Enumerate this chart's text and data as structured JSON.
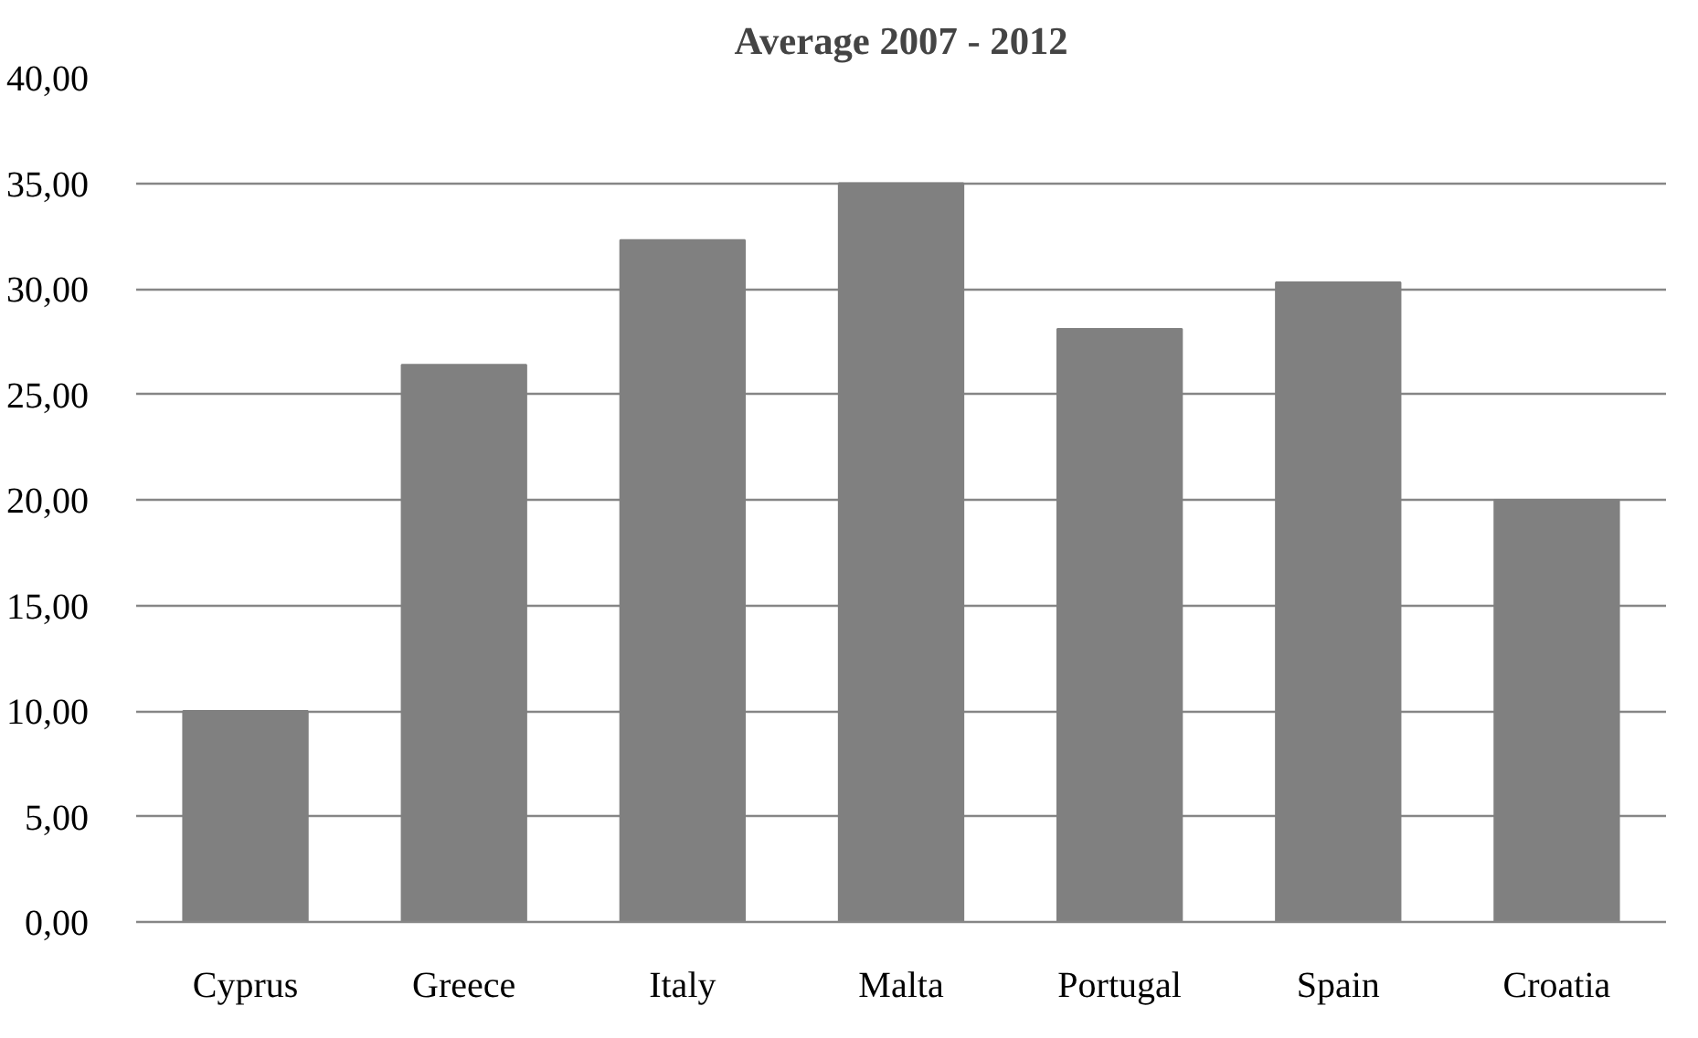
{
  "chart_data": {
    "type": "bar",
    "title": "Average 2007 - 2012",
    "categories": [
      "Cyprus",
      "Greece",
      "Italy",
      "Malta",
      "Portugal",
      "Spain",
      "Croatia"
    ],
    "values": [
      10.0,
      26.4,
      32.3,
      35.0,
      28.1,
      30.3,
      20.0
    ],
    "color": "#808080",
    "ylim": [
      0,
      40
    ],
    "yticks": [
      {
        "value": 0,
        "label": "0,00"
      },
      {
        "value": 5,
        "label": "5,00"
      },
      {
        "value": 10,
        "label": "10,00"
      },
      {
        "value": 15,
        "label": "15,00"
      },
      {
        "value": 20,
        "label": "20,00"
      },
      {
        "value": 25,
        "label": "25,00"
      },
      {
        "value": 30,
        "label": "30,00"
      },
      {
        "value": 35,
        "label": "35,00"
      },
      {
        "value": 40,
        "label": "40,00"
      }
    ],
    "grid": "y"
  }
}
